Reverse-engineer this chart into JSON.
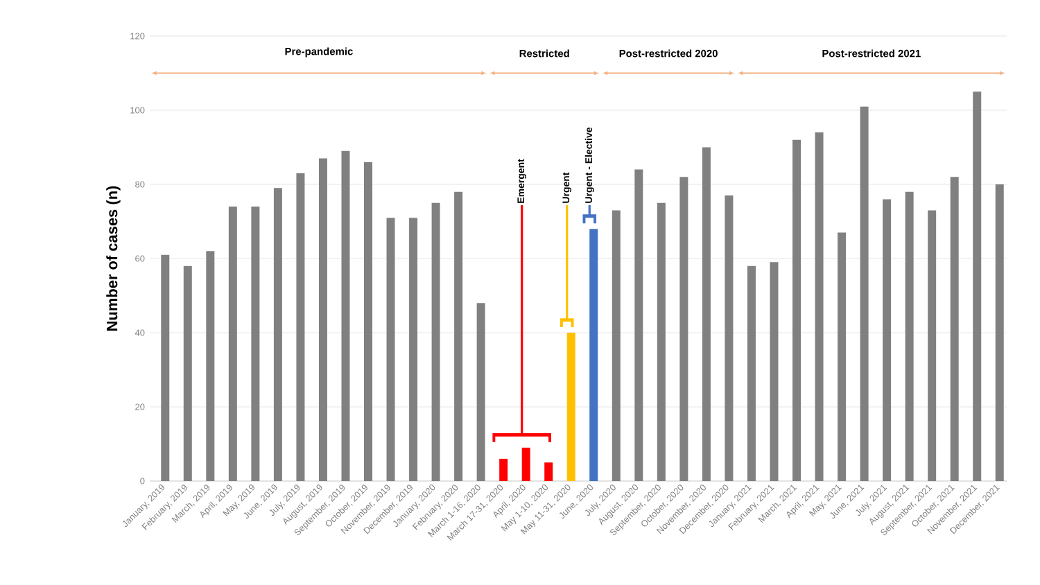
{
  "chart_data": {
    "type": "bar",
    "ylabel": "Number of cases (n)",
    "categories": [
      "January, 2019",
      "February, 2019",
      "March, 2019",
      "April, 2019",
      "May, 2019",
      "June, 2019",
      "July, 2019",
      "August, 2019",
      "September, 2019",
      "October, 2019",
      "November, 2019",
      "December, 2019",
      "January, 2020",
      "February, 2020",
      "March 1-16, 2020",
      "March 17-31, 2020",
      "April, 2020",
      "May 1-10, 2020",
      "May 11-31, 2020",
      "June, 2020",
      "July, 2020",
      "August, 2020",
      "September, 2020",
      "October, 2020",
      "November, 2020",
      "December, 2020",
      "January, 2021",
      "February, 2021",
      "March, 2021",
      "April, 2021",
      "May, 2021",
      "June, 2021",
      "July, 2021",
      "August, 2021",
      "September, 2021",
      "October, 2021",
      "November, 2021",
      "December, 2021"
    ],
    "values": [
      61,
      58,
      62,
      74,
      74,
      79,
      83,
      87,
      89,
      86,
      71,
      71,
      75,
      78,
      48,
      6,
      9,
      5,
      40,
      68,
      73,
      84,
      75,
      82,
      90,
      77,
      58,
      59,
      92,
      94,
      67,
      101,
      76,
      78,
      73,
      82,
      105,
      80
    ],
    "colors": [
      "#808080",
      "#808080",
      "#808080",
      "#808080",
      "#808080",
      "#808080",
      "#808080",
      "#808080",
      "#808080",
      "#808080",
      "#808080",
      "#808080",
      "#808080",
      "#808080",
      "#808080",
      "#ff0000",
      "#ff0000",
      "#ff0000",
      "#ffc000",
      "#4472c4",
      "#808080",
      "#808080",
      "#808080",
      "#808080",
      "#808080",
      "#808080",
      "#808080",
      "#808080",
      "#808080",
      "#808080",
      "#808080",
      "#808080",
      "#808080",
      "#808080",
      "#808080",
      "#808080",
      "#808080",
      "#808080"
    ],
    "ylim": [
      0,
      120
    ],
    "yticks": [
      0,
      20,
      40,
      60,
      80,
      100,
      120
    ],
    "grid": "y",
    "annotations": [
      "Pre-pandemic",
      "Restricted",
      "Post-restricted  2020",
      "Post-restricted  2021",
      "Emergent",
      "Urgent",
      "Urgent - Elective"
    ]
  }
}
